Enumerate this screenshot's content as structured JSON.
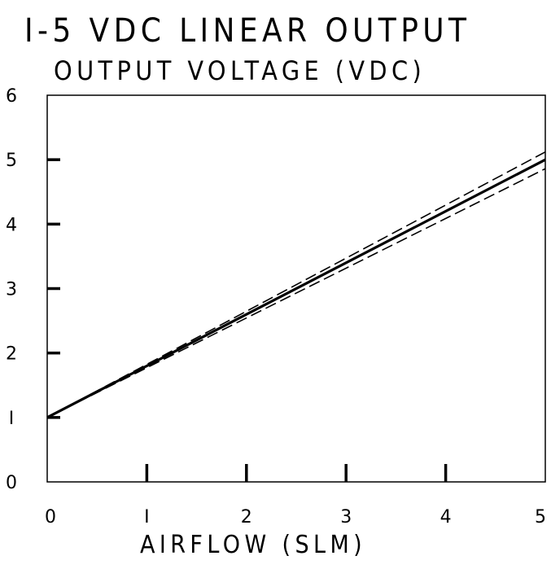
{
  "chart_data": {
    "type": "line",
    "title": "I-5 VDC LINEAR OUTPUT",
    "subtitle": "OUTPUT VOLTAGE (VDC)",
    "xlabel": "AIRFLOW (SLM)",
    "ylabel": "",
    "xlim": [
      0,
      5
    ],
    "ylim": [
      0,
      6
    ],
    "grid": false,
    "x_ticks": [
      "0",
      "I",
      "2",
      "3",
      "4",
      "5"
    ],
    "y_ticks": [
      "0",
      "I",
      "2",
      "3",
      "4",
      "5",
      "6"
    ],
    "series": [
      {
        "x": [
          0,
          5
        ],
        "values": [
          1.0,
          5.0
        ],
        "style": "solid-bold"
      },
      {
        "x": [
          0,
          5
        ],
        "values": [
          1.0,
          5.12
        ],
        "style": "dashed"
      },
      {
        "x": [
          0,
          5
        ],
        "values": [
          1.0,
          4.86
        ],
        "style": "dashed"
      }
    ]
  }
}
